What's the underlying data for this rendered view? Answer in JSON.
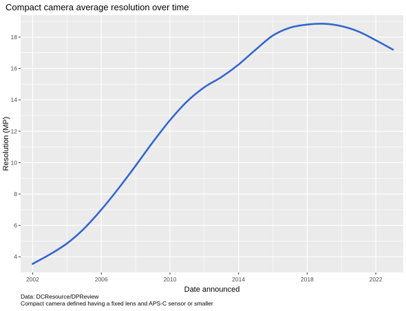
{
  "chart_data": {
    "type": "line",
    "title": "Compact camera average resolution over time",
    "xlabel": "Date announced",
    "ylabel": "Resolution (MP)",
    "xlim": [
      2001.3,
      2023.6
    ],
    "ylim": [
      3.0,
      19.4
    ],
    "x_ticks": [
      2002,
      2006,
      2010,
      2014,
      2018,
      2022
    ],
    "y_ticks": [
      4,
      6,
      8,
      10,
      12,
      14,
      16,
      18
    ],
    "grid": true,
    "legend": "none",
    "colors": {
      "panel": "#ebebeb",
      "grid": "#ffffff",
      "line": "#3366cc",
      "text": "#4d4d4d"
    },
    "series": [
      {
        "x": [
          2002,
          2003,
          2004,
          2005,
          2006,
          2007,
          2008,
          2009,
          2010,
          2011,
          2012,
          2013,
          2014,
          2015,
          2016,
          2017,
          2018,
          2019,
          2020,
          2021,
          2022,
          2023
        ],
        "values": [
          3.55,
          4.15,
          4.85,
          5.8,
          7.0,
          8.35,
          9.8,
          11.3,
          12.7,
          13.9,
          14.8,
          15.45,
          16.25,
          17.2,
          18.1,
          18.6,
          18.8,
          18.85,
          18.7,
          18.35,
          17.8,
          17.2
        ]
      }
    ]
  },
  "caption": {
    "line1": "Data: DCResource/DPReview",
    "line2": "Compact camera defined having a fixed lens and APS-C sensor or smaller"
  }
}
